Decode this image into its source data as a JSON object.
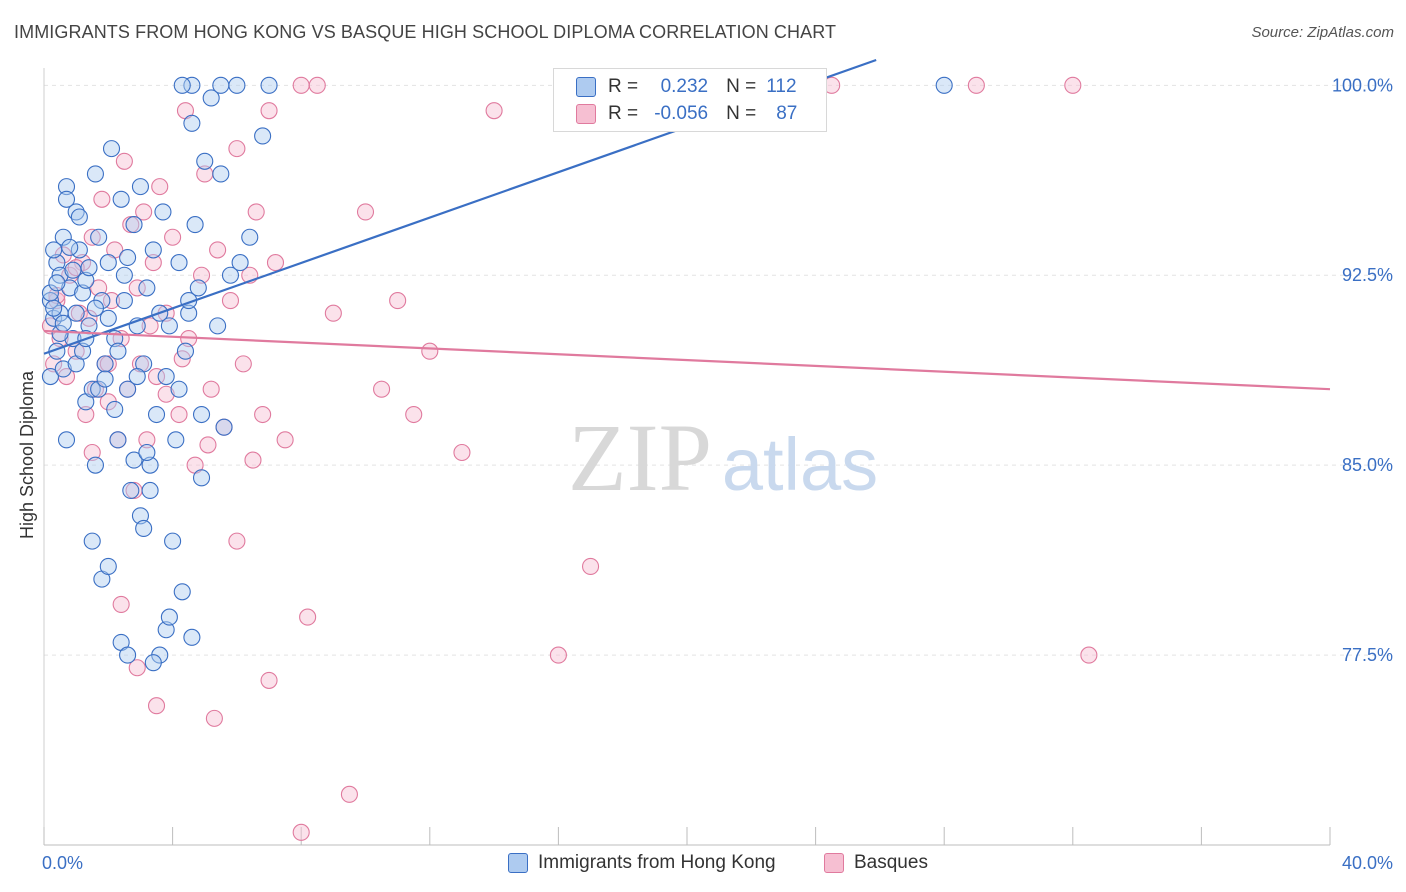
{
  "title": "IMMIGRANTS FROM HONG KONG VS BASQUE HIGH SCHOOL DIPLOMA CORRELATION CHART",
  "source": "Source: ZipAtlas.com",
  "watermark": {
    "zip": "ZIP",
    "atlas": "atlas"
  },
  "colors": {
    "blue": "#3a6fc4",
    "blue_fill": "#aecbf0",
    "pink": "#e07a9e",
    "pink_fill": "#f6bfd2",
    "grid": "#e3e3e3"
  },
  "legend": {
    "rows": [
      {
        "r_label": "R =",
        "r_value": "0.232",
        "n_label": "N =",
        "n_value": "112"
      },
      {
        "r_label": "R =",
        "r_value": "-0.056",
        "n_label": "N =",
        "n_value": "87"
      }
    ]
  },
  "chart_data": {
    "type": "scatter",
    "title": "IMMIGRANTS FROM HONG KONG VS BASQUE HIGH SCHOOL DIPLOMA CORRELATION CHART",
    "xlabel": "",
    "ylabel": "High School Diploma",
    "xlim": [
      0,
      40
    ],
    "ylim": [
      70.0,
      101.0
    ],
    "x_tick_labels": [
      "0.0%",
      "40.0%"
    ],
    "y_ticks": [
      77.5,
      85.0,
      92.5,
      100.0
    ],
    "y_tick_labels": [
      "77.5%",
      "85.0%",
      "92.5%",
      "100.0%"
    ],
    "grid": true,
    "legend_position": "top-center",
    "series": [
      {
        "name": "Immigrants from Hong Kong",
        "color": "#3a6fc4",
        "r": 0.232,
        "n": 112,
        "trend": {
          "x": [
            0.0,
            27.0
          ],
          "y": [
            89.4,
            101.5
          ]
        },
        "points": [
          [
            0.2,
            88.5
          ],
          [
            0.2,
            91.5
          ],
          [
            0.3,
            90.8
          ],
          [
            0.4,
            93.0
          ],
          [
            0.4,
            89.5
          ],
          [
            0.5,
            92.5
          ],
          [
            0.5,
            91.0
          ],
          [
            0.6,
            94.0
          ],
          [
            0.6,
            88.8
          ],
          [
            0.7,
            96.0
          ],
          [
            0.7,
            86.0
          ],
          [
            0.8,
            92.0
          ],
          [
            0.9,
            90.0
          ],
          [
            1.0,
            95.0
          ],
          [
            1.0,
            89.0
          ],
          [
            1.1,
            93.5
          ],
          [
            1.2,
            91.8
          ],
          [
            1.3,
            87.5
          ],
          [
            1.3,
            92.3
          ],
          [
            1.4,
            90.5
          ],
          [
            1.5,
            88.0
          ],
          [
            1.6,
            96.5
          ],
          [
            1.6,
            85.0
          ],
          [
            1.7,
            94.0
          ],
          [
            1.8,
            91.5
          ],
          [
            1.9,
            89.0
          ],
          [
            2.0,
            93.0
          ],
          [
            2.1,
            97.5
          ],
          [
            2.2,
            90.0
          ],
          [
            2.3,
            86.0
          ],
          [
            2.4,
            95.5
          ],
          [
            2.5,
            92.5
          ],
          [
            2.6,
            88.0
          ],
          [
            2.7,
            84.0
          ],
          [
            2.8,
            94.5
          ],
          [
            2.9,
            90.5
          ],
          [
            3.0,
            96.0
          ],
          [
            3.1,
            89.0
          ],
          [
            3.2,
            92.0
          ],
          [
            3.3,
            85.0
          ],
          [
            3.4,
            93.5
          ],
          [
            3.5,
            87.0
          ],
          [
            3.6,
            91.0
          ],
          [
            3.7,
            95.0
          ],
          [
            3.8,
            88.5
          ],
          [
            3.9,
            90.5
          ],
          [
            4.0,
            82.0
          ],
          [
            4.1,
            86.0
          ],
          [
            4.2,
            93.0
          ],
          [
            4.3,
            80.0
          ],
          [
            4.4,
            89.5
          ],
          [
            4.5,
            91.0
          ],
          [
            4.6,
            98.5
          ],
          [
            4.7,
            94.5
          ],
          [
            4.8,
            92.0
          ],
          [
            4.9,
            84.5
          ],
          [
            5.0,
            97.0
          ],
          [
            5.2,
            99.5
          ],
          [
            5.4,
            90.5
          ],
          [
            5.6,
            86.5
          ],
          [
            5.8,
            92.5
          ],
          [
            6.0,
            100.0
          ],
          [
            1.5,
            82.0
          ],
          [
            1.8,
            80.5
          ],
          [
            2.0,
            81.0
          ],
          [
            2.4,
            78.0
          ],
          [
            2.6,
            77.5
          ],
          [
            3.0,
            83.0
          ],
          [
            3.3,
            84.0
          ],
          [
            3.6,
            77.5
          ],
          [
            0.3,
            91.2
          ],
          [
            0.5,
            90.2
          ],
          [
            0.8,
            93.6
          ],
          [
            1.0,
            91.0
          ],
          [
            1.2,
            89.5
          ],
          [
            1.4,
            92.8
          ],
          [
            1.7,
            88.0
          ],
          [
            2.0,
            90.8
          ],
          [
            2.3,
            89.5
          ],
          [
            2.6,
            93.2
          ],
          [
            2.8,
            85.2
          ],
          [
            3.1,
            82.5
          ],
          [
            0.2,
            91.8
          ],
          [
            0.4,
            92.2
          ],
          [
            0.6,
            90.6
          ],
          [
            0.9,
            92.7
          ],
          [
            1.1,
            94.8
          ],
          [
            1.3,
            90.0
          ],
          [
            1.6,
            91.2
          ],
          [
            1.9,
            88.4
          ],
          [
            2.2,
            87.2
          ],
          [
            2.5,
            91.5
          ],
          [
            2.9,
            88.5
          ],
          [
            3.4,
            77.2
          ],
          [
            3.8,
            78.5
          ],
          [
            4.2,
            88.0
          ],
          [
            4.5,
            91.5
          ],
          [
            4.9,
            87.0
          ],
          [
            5.5,
            96.5
          ],
          [
            6.1,
            93.0
          ],
          [
            6.4,
            94.0
          ],
          [
            6.8,
            98.0
          ],
          [
            7.0,
            100.0
          ],
          [
            5.5,
            100.0
          ],
          [
            4.6,
            100.0
          ],
          [
            4.3,
            100.0
          ],
          [
            3.2,
            85.5
          ],
          [
            3.9,
            79.0
          ],
          [
            4.6,
            78.2
          ],
          [
            28.0,
            100.0
          ],
          [
            0.3,
            93.5
          ],
          [
            0.7,
            95.5
          ]
        ]
      },
      {
        "name": "Basques",
        "color": "#e07a9e",
        "r": -0.056,
        "n": 87,
        "trend": {
          "x": [
            0.0,
            40.0
          ],
          "y": [
            90.3,
            88.0
          ]
        },
        "points": [
          [
            0.2,
            90.5
          ],
          [
            0.3,
            89.0
          ],
          [
            0.4,
            91.5
          ],
          [
            0.5,
            90.0
          ],
          [
            0.7,
            88.5
          ],
          [
            0.8,
            92.5
          ],
          [
            1.0,
            89.5
          ],
          [
            1.1,
            91.0
          ],
          [
            1.2,
            93.0
          ],
          [
            1.3,
            87.0
          ],
          [
            1.4,
            90.8
          ],
          [
            1.5,
            94.0
          ],
          [
            1.6,
            88.0
          ],
          [
            1.7,
            92.0
          ],
          [
            1.8,
            95.5
          ],
          [
            1.9,
            89.0
          ],
          [
            2.0,
            87.5
          ],
          [
            2.1,
            91.5
          ],
          [
            2.2,
            93.5
          ],
          [
            2.3,
            86.0
          ],
          [
            2.4,
            90.0
          ],
          [
            2.5,
            97.0
          ],
          [
            2.6,
            88.0
          ],
          [
            2.7,
            94.5
          ],
          [
            2.8,
            84.0
          ],
          [
            2.9,
            92.0
          ],
          [
            3.0,
            89.0
          ],
          [
            3.1,
            95.0
          ],
          [
            3.2,
            86.0
          ],
          [
            3.3,
            90.5
          ],
          [
            3.4,
            93.0
          ],
          [
            3.5,
            88.5
          ],
          [
            3.6,
            96.0
          ],
          [
            3.8,
            91.0
          ],
          [
            4.0,
            94.0
          ],
          [
            4.2,
            87.0
          ],
          [
            4.4,
            99.0
          ],
          [
            4.5,
            90.0
          ],
          [
            4.7,
            85.0
          ],
          [
            4.9,
            92.5
          ],
          [
            5.0,
            96.5
          ],
          [
            5.2,
            88.0
          ],
          [
            5.4,
            93.5
          ],
          [
            5.6,
            86.5
          ],
          [
            5.8,
            91.5
          ],
          [
            6.0,
            97.5
          ],
          [
            6.2,
            89.0
          ],
          [
            6.4,
            92.5
          ],
          [
            6.6,
            95.0
          ],
          [
            6.8,
            87.0
          ],
          [
            7.0,
            99.0
          ],
          [
            7.2,
            93.0
          ],
          [
            7.5,
            86.0
          ],
          [
            8.0,
            100.0
          ],
          [
            8.5,
            100.0
          ],
          [
            9.0,
            91.0
          ],
          [
            10.5,
            88.0
          ],
          [
            11.0,
            91.5
          ],
          [
            11.5,
            87.0
          ],
          [
            12.0,
            89.5
          ],
          [
            6.0,
            82.0
          ],
          [
            7.0,
            76.5
          ],
          [
            8.2,
            79.0
          ],
          [
            9.5,
            72.0
          ],
          [
            8.0,
            70.5
          ],
          [
            5.3,
            75.0
          ],
          [
            3.5,
            75.5
          ],
          [
            2.9,
            77.0
          ],
          [
            2.4,
            79.5
          ],
          [
            1.5,
            85.5
          ],
          [
            2.0,
            89.0
          ],
          [
            0.6,
            93.3
          ],
          [
            1.0,
            92.8
          ],
          [
            3.8,
            87.8
          ],
          [
            4.3,
            89.2
          ],
          [
            5.1,
            85.8
          ],
          [
            6.5,
            85.2
          ],
          [
            10.0,
            95.0
          ],
          [
            13.0,
            85.5
          ],
          [
            14.0,
            99.0
          ],
          [
            16.0,
            77.5
          ],
          [
            17.0,
            81.0
          ],
          [
            29.0,
            100.0
          ],
          [
            32.0,
            100.0
          ],
          [
            24.5,
            100.0
          ],
          [
            32.5,
            77.5
          ],
          [
            0.4,
            91.7
          ]
        ]
      }
    ]
  }
}
